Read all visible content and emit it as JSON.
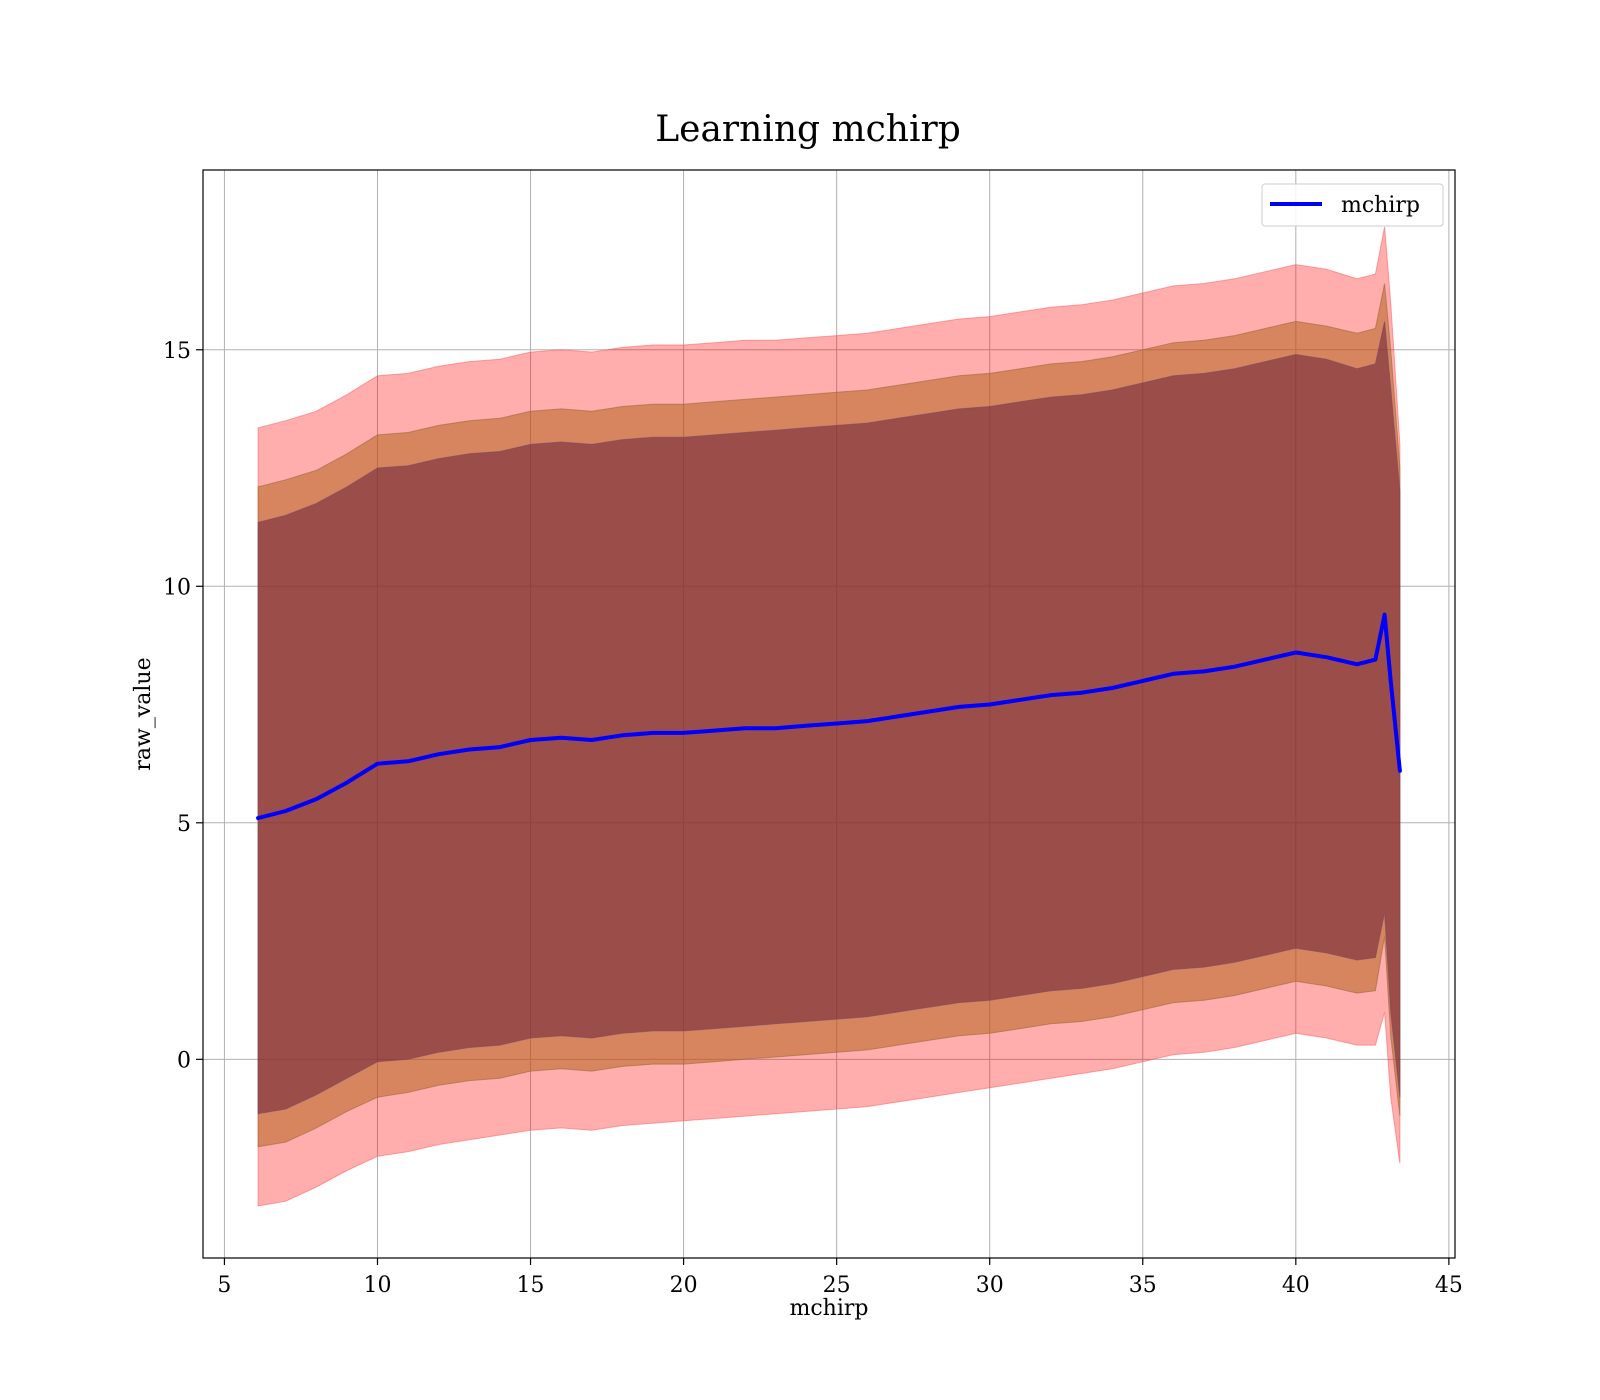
{
  "chart_data": {
    "type": "area",
    "title": "Learning mchirp",
    "xlabel": "mchirp",
    "ylabel": "raw_value",
    "xlim": [
      4.3,
      45.2
    ],
    "ylim": [
      -4.2,
      18.8
    ],
    "xticks": [
      5,
      10,
      15,
      20,
      25,
      30,
      35,
      40,
      45
    ],
    "yticks": [
      0,
      5,
      10,
      15
    ],
    "xtick_labels": [
      "5",
      "10",
      "15",
      "20",
      "25",
      "30",
      "35",
      "40",
      "45"
    ],
    "ytick_labels": [
      "0",
      "5",
      "10",
      "15"
    ],
    "grid": true,
    "legend": {
      "position": "top-right",
      "entries": [
        "mchirp"
      ]
    },
    "colors": {
      "line": "#0000ff",
      "band": "#ff0000",
      "band_mid": "#b5651d",
      "band_inner": "#6b1f3a"
    },
    "x": [
      6.1,
      7,
      8,
      9,
      10,
      11,
      12,
      13,
      14,
      15,
      16,
      17,
      18,
      19,
      20,
      21,
      22,
      23,
      24,
      25,
      26,
      27,
      28,
      29,
      30,
      31,
      32,
      33,
      34,
      35,
      36,
      37,
      38,
      39,
      40,
      41,
      42,
      42.6,
      42.9,
      43.1,
      43.4
    ],
    "series": [
      {
        "name": "mchirp",
        "kind": "line",
        "values": [
          5.1,
          5.25,
          5.5,
          5.85,
          6.25,
          6.3,
          6.45,
          6.55,
          6.6,
          6.75,
          6.8,
          6.75,
          6.85,
          6.9,
          6.9,
          6.95,
          7.0,
          7.0,
          7.05,
          7.1,
          7.15,
          7.25,
          7.35,
          7.45,
          7.5,
          7.6,
          7.7,
          7.75,
          7.85,
          8.0,
          8.15,
          8.2,
          8.3,
          8.45,
          8.6,
          8.5,
          8.35,
          8.45,
          9.4,
          8.0,
          6.1
        ]
      },
      {
        "kind": "band",
        "level": "outer",
        "lower": [
          -3.1,
          -3.0,
          -2.7,
          -2.35,
          -2.05,
          -1.95,
          -1.8,
          -1.7,
          -1.6,
          -1.5,
          -1.45,
          -1.5,
          -1.4,
          -1.35,
          -1.3,
          -1.25,
          -1.2,
          -1.15,
          -1.1,
          -1.05,
          -1.0,
          -0.9,
          -0.8,
          -0.7,
          -0.6,
          -0.5,
          -0.4,
          -0.3,
          -0.2,
          -0.05,
          0.1,
          0.15,
          0.25,
          0.4,
          0.55,
          0.45,
          0.3,
          0.3,
          1.0,
          -0.8,
          -2.2
        ],
        "upper": [
          13.35,
          13.5,
          13.7,
          14.05,
          14.45,
          14.5,
          14.65,
          14.75,
          14.8,
          14.95,
          15.0,
          14.95,
          15.05,
          15.1,
          15.1,
          15.15,
          15.2,
          15.2,
          15.25,
          15.3,
          15.35,
          15.45,
          15.55,
          15.65,
          15.7,
          15.8,
          15.9,
          15.95,
          16.05,
          16.2,
          16.35,
          16.4,
          16.5,
          16.65,
          16.8,
          16.7,
          16.5,
          16.6,
          17.6,
          16.0,
          13.0
        ]
      },
      {
        "kind": "band",
        "level": "middle",
        "lower": [
          -1.85,
          -1.75,
          -1.45,
          -1.1,
          -0.8,
          -0.7,
          -0.55,
          -0.45,
          -0.4,
          -0.25,
          -0.2,
          -0.25,
          -0.15,
          -0.1,
          -0.1,
          -0.05,
          0.0,
          0.05,
          0.1,
          0.15,
          0.2,
          0.3,
          0.4,
          0.5,
          0.55,
          0.65,
          0.75,
          0.8,
          0.9,
          1.05,
          1.2,
          1.25,
          1.35,
          1.5,
          1.65,
          1.55,
          1.4,
          1.45,
          2.6,
          0.5,
          -1.2
        ],
        "upper": [
          12.1,
          12.25,
          12.45,
          12.8,
          13.2,
          13.25,
          13.4,
          13.5,
          13.55,
          13.7,
          13.75,
          13.7,
          13.8,
          13.85,
          13.85,
          13.9,
          13.95,
          14.0,
          14.05,
          14.1,
          14.15,
          14.25,
          14.35,
          14.45,
          14.5,
          14.6,
          14.7,
          14.75,
          14.85,
          15.0,
          15.15,
          15.2,
          15.3,
          15.45,
          15.6,
          15.5,
          15.35,
          15.45,
          16.4,
          15.0,
          12.5
        ]
      },
      {
        "kind": "band",
        "level": "inner",
        "lower": [
          -1.15,
          -1.05,
          -0.75,
          -0.4,
          -0.05,
          0.0,
          0.15,
          0.25,
          0.3,
          0.45,
          0.5,
          0.45,
          0.55,
          0.6,
          0.6,
          0.65,
          0.7,
          0.75,
          0.8,
          0.85,
          0.9,
          1.0,
          1.1,
          1.2,
          1.25,
          1.35,
          1.45,
          1.5,
          1.6,
          1.75,
          1.9,
          1.95,
          2.05,
          2.2,
          2.35,
          2.25,
          2.1,
          2.15,
          3.1,
          1.0,
          -0.8
        ],
        "upper": [
          11.35,
          11.5,
          11.75,
          12.1,
          12.5,
          12.55,
          12.7,
          12.8,
          12.85,
          13.0,
          13.05,
          13.0,
          13.1,
          13.15,
          13.15,
          13.2,
          13.25,
          13.3,
          13.35,
          13.4,
          13.45,
          13.55,
          13.65,
          13.75,
          13.8,
          13.9,
          14.0,
          14.05,
          14.15,
          14.3,
          14.45,
          14.5,
          14.6,
          14.75,
          14.9,
          14.8,
          14.6,
          14.7,
          15.6,
          14.2,
          12.0
        ]
      }
    ]
  }
}
